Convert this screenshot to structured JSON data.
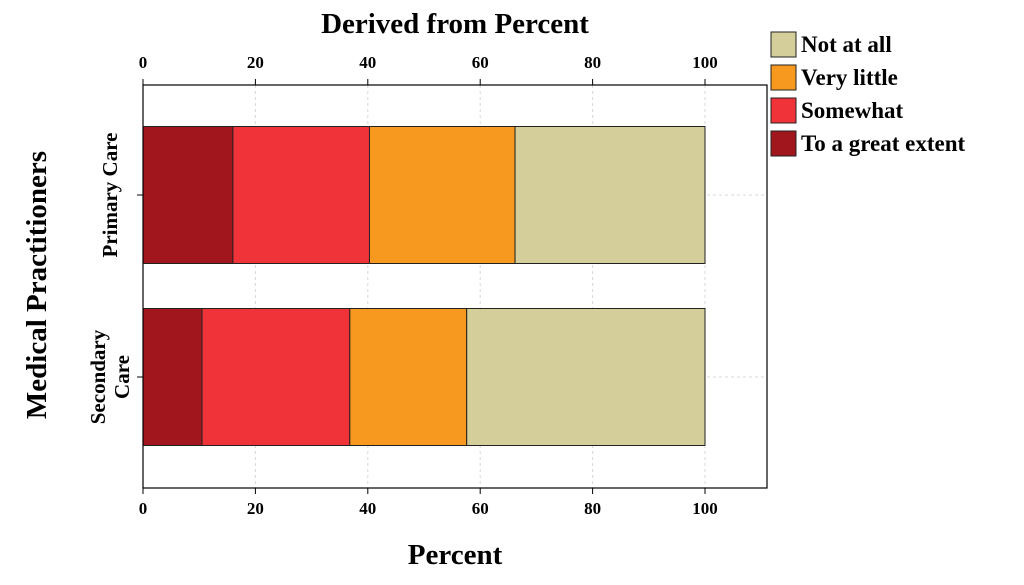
{
  "chart_data": {
    "type": "bar",
    "orientation": "horizontal",
    "stacked": true,
    "title": "Derived from Percent",
    "xlabel": "Percent",
    "ylabel": "Medical Practitioners",
    "xlim": [
      0,
      111
    ],
    "xticks": [
      0,
      20,
      40,
      60,
      80,
      100
    ],
    "grid": true,
    "legend_position": "top-right outside",
    "categories": [
      "Primary Care",
      "Secondary Care"
    ],
    "category_label_lines": [
      [
        "Primary Care"
      ],
      [
        "Secondary",
        "Care"
      ]
    ],
    "series": [
      {
        "name": "To a great extent",
        "color": "#a0161c",
        "values": [
          16,
          10.5
        ]
      },
      {
        "name": "Somewhat",
        "color": "#ef3339",
        "values": [
          24.3,
          26.3
        ]
      },
      {
        "name": "Very little",
        "color": "#f7991f",
        "values": [
          25.9,
          20.8
        ]
      },
      {
        "name": "Not at all",
        "color": "#d4cf9a",
        "values": [
          33.8,
          42.4
        ]
      }
    ],
    "legend_order": [
      "Not at all",
      "Very little",
      "Somewhat",
      "To a great extent"
    ]
  }
}
